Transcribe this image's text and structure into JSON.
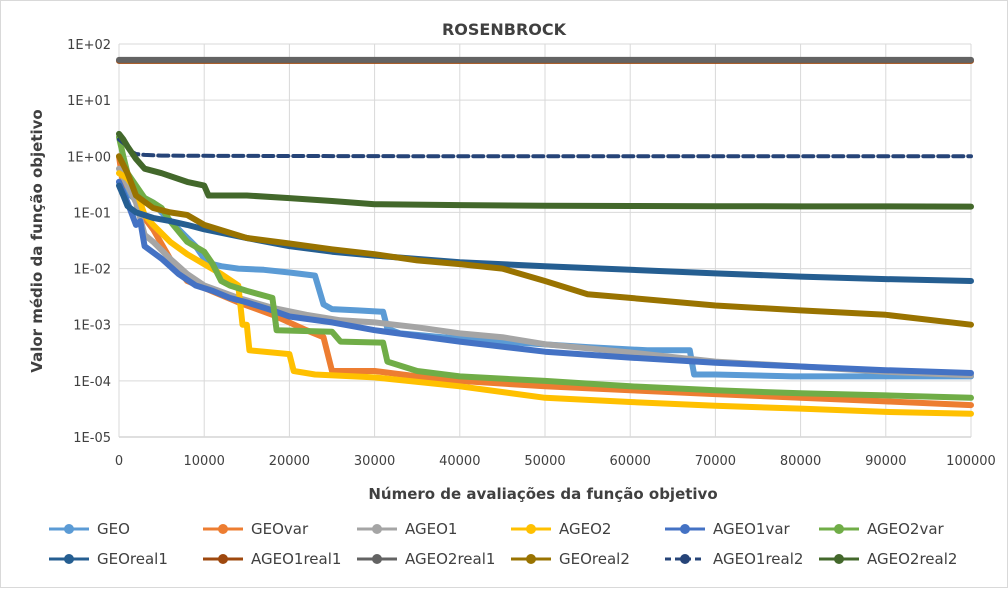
{
  "chart_data": {
    "type": "line",
    "title": "ROSENBROCK",
    "xlabel": "Número de avaliações da função objetivo",
    "ylabel": "Valor médio da função objetivo",
    "x_ticks": [
      "0",
      "10000",
      "20000",
      "30000",
      "40000",
      "50000",
      "60000",
      "70000",
      "80000",
      "90000",
      "100000"
    ],
    "y_ticks": [
      "1E-05",
      "1E-04",
      "1E-03",
      "1E-02",
      "1E-01",
      "1E+00",
      "1E+01",
      "1E+02"
    ],
    "xlim": [
      0,
      100000
    ],
    "ylim": [
      1e-05,
      100
    ],
    "y_scale": "log",
    "grid": true,
    "legend_position": "bottom",
    "series": [
      {
        "name": "GEO",
        "color": "#5B9BD5",
        "dashed": false,
        "x": [
          0,
          1000,
          2000,
          3000,
          4000,
          5000,
          7000,
          9000,
          10000,
          11000,
          12000,
          14000,
          17000,
          20000,
          23000,
          24000,
          25000,
          28000,
          31000,
          31500,
          33000,
          38000,
          45000,
          55000,
          62000,
          67000,
          67500,
          70000,
          79000,
          79500,
          100000
        ],
        "y": [
          0.35,
          0.22,
          0.17,
          0.18,
          0.15,
          0.1,
          0.05,
          0.025,
          0.015,
          0.012,
          0.011,
          0.01,
          0.0095,
          0.0085,
          0.0075,
          0.0023,
          0.0019,
          0.0018,
          0.0017,
          0.00085,
          0.0007,
          0.0006,
          0.0005,
          0.0004,
          0.00035,
          0.00035,
          0.00013,
          0.00013,
          0.00012,
          0.00012,
          0.00012
        ]
      },
      {
        "name": "GEOvar",
        "color": "#ED7D31",
        "dashed": false,
        "x": [
          0,
          500,
          1000,
          1500,
          2500,
          4000,
          6000,
          8000,
          10000,
          14000,
          18000,
          22000,
          24000,
          25000,
          26000,
          30000,
          35000,
          40000,
          50000,
          60000,
          70000,
          80000,
          90000,
          100000
        ],
        "y": [
          1.0,
          0.3,
          0.5,
          0.25,
          0.1,
          0.05,
          0.015,
          0.006,
          0.0045,
          0.0025,
          0.0015,
          0.0008,
          0.0006,
          0.00015,
          0.00015,
          0.00015,
          0.00012,
          0.0001,
          8e-05,
          6.8e-05,
          5.8e-05,
          5e-05,
          4.3e-05,
          3.7e-05
        ]
      },
      {
        "name": "AGEO1",
        "color": "#A5A5A5",
        "dashed": false,
        "x": [
          0,
          1000,
          2000,
          3000,
          4000,
          6000,
          8000,
          10000,
          14000,
          18000,
          22000,
          26000,
          30000,
          35000,
          40000,
          45000,
          50000,
          55000,
          60000,
          70000,
          80000,
          90000,
          100000
        ],
        "y": [
          0.6,
          0.3,
          0.15,
          0.04,
          0.03,
          0.015,
          0.008,
          0.005,
          0.003,
          0.002,
          0.0015,
          0.0012,
          0.0011,
          0.0009,
          0.0007,
          0.0006,
          0.00045,
          0.00038,
          0.00032,
          0.00022,
          0.00018,
          0.000145,
          0.000125
        ]
      },
      {
        "name": "AGEO2",
        "color": "#FFC000",
        "dashed": false,
        "x": [
          0,
          1000,
          2000,
          3000,
          4000,
          6000,
          8000,
          10000,
          12000,
          14000,
          14500,
          15000,
          15300,
          20000,
          20500,
          23000,
          30000,
          40000,
          50000,
          60000,
          70000,
          80000,
          90000,
          100000
        ],
        "y": [
          0.5,
          0.4,
          0.25,
          0.09,
          0.06,
          0.03,
          0.018,
          0.012,
          0.008,
          0.005,
          0.001,
          0.001,
          0.00035,
          0.0003,
          0.00015,
          0.00013,
          0.000115,
          8e-05,
          5e-05,
          4.2e-05,
          3.6e-05,
          3.2e-05,
          2.8e-05,
          2.6e-05
        ]
      },
      {
        "name": "AGEO1var",
        "color": "#4472C4",
        "dashed": false,
        "x": [
          0,
          1000,
          2000,
          2500,
          3000,
          5000,
          7000,
          9000,
          11000,
          13000,
          15000,
          18000,
          20000,
          25000,
          30000,
          40000,
          50000,
          60000,
          70000,
          80000,
          90000,
          100000
        ],
        "y": [
          0.35,
          0.15,
          0.06,
          0.07,
          0.025,
          0.015,
          0.008,
          0.005,
          0.004,
          0.003,
          0.0025,
          0.0018,
          0.0014,
          0.0011,
          0.0008,
          0.0005,
          0.00033,
          0.00026,
          0.00021,
          0.00018,
          0.000155,
          0.000138
        ]
      },
      {
        "name": "AGEO2var",
        "color": "#70AD47",
        "dashed": false,
        "x": [
          0,
          500,
          1000,
          2000,
          3000,
          4000,
          5000,
          6000,
          8000,
          10000,
          11000,
          12000,
          13000,
          15000,
          18000,
          18500,
          25000,
          26000,
          31000,
          31500,
          35000,
          40000,
          50000,
          60000,
          70000,
          80000,
          90000,
          100000
        ],
        "y": [
          2.2,
          1.0,
          0.5,
          0.3,
          0.18,
          0.15,
          0.12,
          0.07,
          0.03,
          0.02,
          0.012,
          0.006,
          0.005,
          0.004,
          0.003,
          0.0008,
          0.00075,
          0.0005,
          0.00048,
          0.00022,
          0.00015,
          0.00012,
          0.0001,
          8e-05,
          6.8e-05,
          6e-05,
          5.5e-05,
          5e-05
        ]
      },
      {
        "name": "GEOreal1",
        "color": "#255E91",
        "dashed": false,
        "x": [
          0,
          500,
          1000,
          2000,
          4000,
          6000,
          8000,
          10000,
          15000,
          20000,
          25000,
          30000,
          40000,
          50000,
          60000,
          70000,
          80000,
          90000,
          100000
        ],
        "y": [
          0.3,
          0.2,
          0.13,
          0.1,
          0.08,
          0.07,
          0.06,
          0.05,
          0.035,
          0.025,
          0.02,
          0.017,
          0.013,
          0.011,
          0.0095,
          0.0082,
          0.0072,
          0.0065,
          0.006
        ]
      },
      {
        "name": "AGEO1real1",
        "color": "#9E480E",
        "dashed": false,
        "x": [
          0,
          100000
        ],
        "y": [
          50,
          50
        ]
      },
      {
        "name": "AGEO2real1",
        "color": "#636363",
        "dashed": false,
        "x": [
          0,
          100000
        ],
        "y": [
          52,
          52
        ]
      },
      {
        "name": "GEOreal2",
        "color": "#997300",
        "dashed": false,
        "x": [
          0,
          1000,
          2000,
          4000,
          6000,
          8000,
          10000,
          15000,
          20000,
          25000,
          30000,
          35000,
          40000,
          45000,
          50000,
          55000,
          60000,
          70000,
          80000,
          90000,
          100000
        ],
        "y": [
          1.0,
          0.5,
          0.2,
          0.12,
          0.1,
          0.09,
          0.06,
          0.035,
          0.028,
          0.022,
          0.018,
          0.014,
          0.012,
          0.01,
          0.006,
          0.0035,
          0.003,
          0.0022,
          0.0018,
          0.0015,
          0.001
        ]
      },
      {
        "name": "AGEO1real2",
        "color": "#264478",
        "dashed": true,
        "x": [
          0,
          1000,
          1500,
          2000,
          3000,
          5000,
          10000,
          20000,
          40000,
          60000,
          80000,
          100000
        ],
        "y": [
          2.0,
          1.5,
          1.2,
          1.1,
          1.06,
          1.03,
          1.02,
          1.01,
          1.0,
          1.0,
          1.0,
          1.0
        ]
      },
      {
        "name": "AGEO2real2",
        "color": "#43682B",
        "dashed": false,
        "x": [
          0,
          500,
          1000,
          2000,
          3000,
          5000,
          8000,
          10000,
          10500,
          15000,
          20000,
          25000,
          30000,
          40000,
          50000,
          60000,
          70000,
          80000,
          90000,
          100000
        ],
        "y": [
          2.5,
          2.0,
          1.5,
          0.9,
          0.6,
          0.5,
          0.35,
          0.3,
          0.2,
          0.2,
          0.18,
          0.16,
          0.14,
          0.135,
          0.132,
          0.13,
          0.129,
          0.128,
          0.128,
          0.127
        ]
      }
    ]
  }
}
